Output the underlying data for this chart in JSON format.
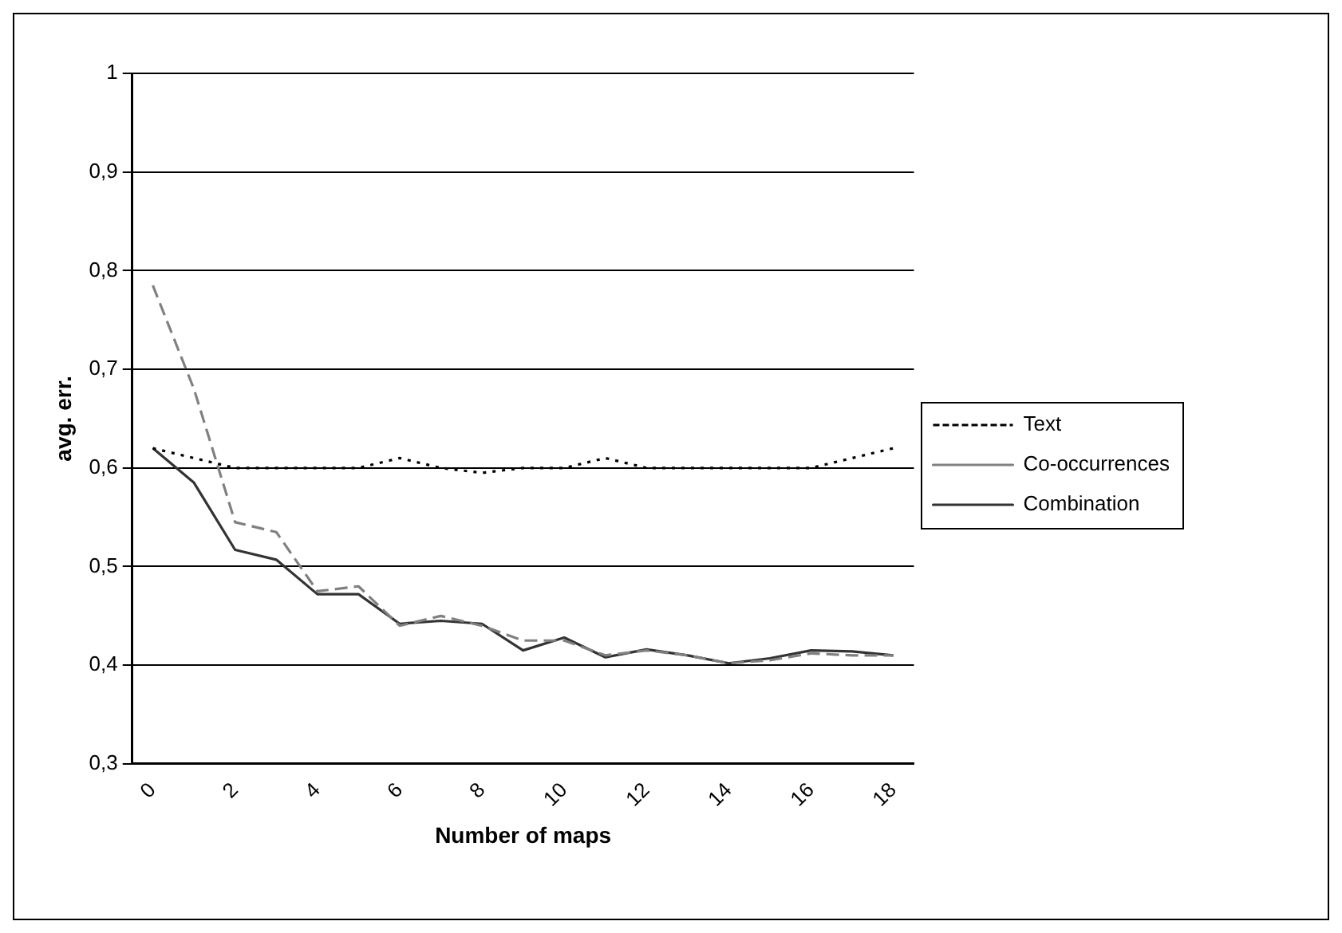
{
  "chart_data": {
    "type": "line",
    "xlabel": "Number of maps",
    "ylabel": "avg. err.",
    "categories": [
      "0",
      null,
      "2",
      null,
      "4",
      null,
      "6",
      null,
      "8",
      null,
      "10",
      null,
      "12",
      null,
      "14",
      null,
      "16",
      null,
      "18"
    ],
    "series": [
      {
        "name": "Text",
        "color": "#000000",
        "line_style": "dotted",
        "values": [
          0.62,
          0.61,
          0.6,
          0.6,
          0.6,
          0.6,
          0.61,
          0.6,
          0.595,
          0.6,
          0.6,
          0.61,
          0.6,
          0.6,
          0.6,
          0.6,
          0.6,
          0.61,
          0.62
        ]
      },
      {
        "name": "Co-occurrences",
        "color": "#808080",
        "line_style": "dashed",
        "values": [
          0.785,
          0.68,
          0.545,
          0.535,
          0.475,
          0.48,
          0.44,
          0.45,
          0.44,
          0.425,
          0.425,
          0.41,
          0.415,
          0.41,
          0.402,
          0.405,
          0.412,
          0.41,
          0.41
        ]
      },
      {
        "name": "Combination",
        "color": "#333333",
        "line_style": "solid",
        "values": [
          0.62,
          0.585,
          0.517,
          0.507,
          0.472,
          0.472,
          0.442,
          0.445,
          0.442,
          0.415,
          0.428,
          0.408,
          0.416,
          0.41,
          0.402,
          0.407,
          0.415,
          0.414,
          0.41
        ]
      }
    ],
    "ylim": [
      0.3,
      1
    ],
    "yticks": [
      {
        "value": 0.3,
        "label": "0,3"
      },
      {
        "value": 0.4,
        "label": "0,4"
      },
      {
        "value": 0.5,
        "label": "0,5"
      },
      {
        "value": 0.6,
        "label": "0,6"
      },
      {
        "value": 0.7,
        "label": "0,7"
      },
      {
        "value": 0.8,
        "label": "0,8"
      },
      {
        "value": 0.9,
        "label": "0,9"
      },
      {
        "value": 1,
        "label": "1"
      }
    ],
    "grid": "y",
    "legend": "right",
    "marker": "none"
  }
}
